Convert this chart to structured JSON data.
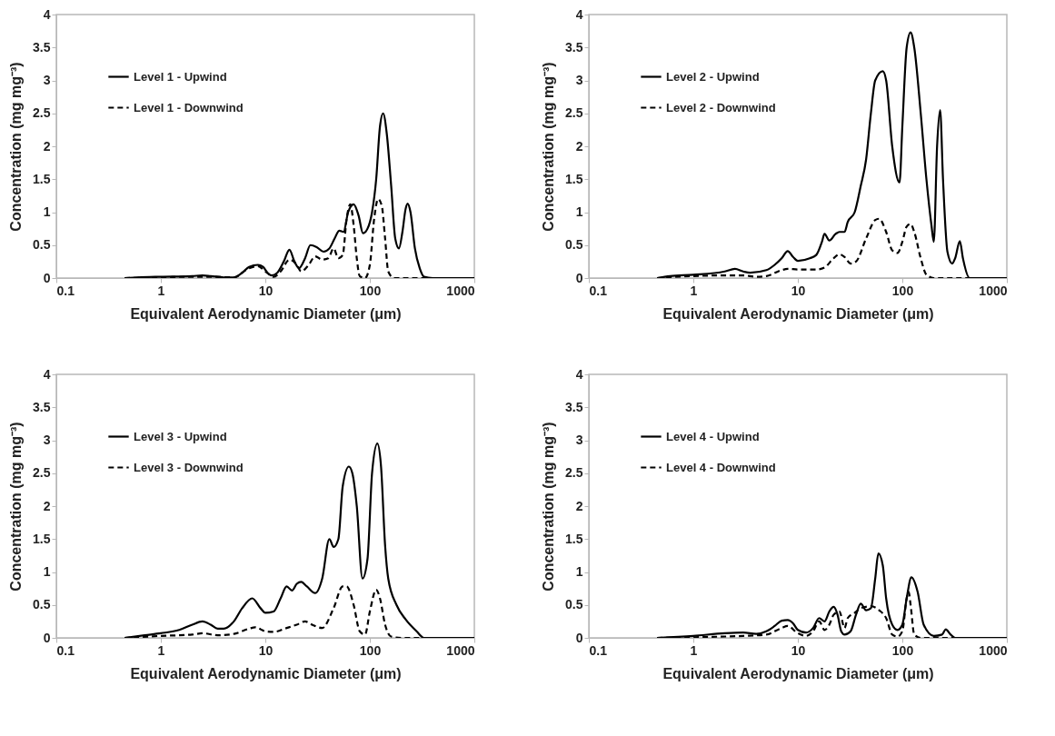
{
  "chart_data": [
    {
      "type": "line",
      "xlabel": "Equivalent Aerodynamic Diameter (μm)",
      "ylabel": "Concentration (mg mg⁻³)",
      "log": "x",
      "xlim": [
        0.1,
        1000
      ],
      "xticks": [
        0.1,
        1,
        10,
        100,
        1000
      ],
      "ylim": [
        0,
        4
      ],
      "yticks": [
        0,
        0.5,
        1,
        1.5,
        2,
        2.5,
        3,
        3.5,
        4
      ],
      "legend": "top left",
      "series": [
        {
          "name": "Level 1 - Upwind",
          "color": "#000000",
          "line_style": "solid",
          "x": [
            0.45,
            0.6,
            1,
            2,
            2.5,
            3,
            4,
            5,
            6,
            7,
            8.5,
            9.5,
            10.5,
            11.5,
            13,
            15,
            17,
            19,
            21,
            24,
            27,
            31,
            36,
            41,
            46,
            51,
            56,
            62,
            70,
            78,
            86,
            95,
            105,
            115,
            125,
            134,
            145,
            160,
            175,
            190,
            205,
            220,
            230,
            245,
            270,
            300,
            330,
            400,
            1000
          ],
          "values": [
            0,
            0.01,
            0.02,
            0.03,
            0.04,
            0.03,
            0.01,
            0.01,
            0.08,
            0.17,
            0.2,
            0.17,
            0.08,
            0.04,
            0.08,
            0.25,
            0.43,
            0.25,
            0.15,
            0.3,
            0.5,
            0.47,
            0.4,
            0.45,
            0.6,
            0.72,
            0.7,
            1.0,
            1.12,
            0.95,
            0.68,
            0.75,
            1.0,
            1.5,
            2.3,
            2.5,
            2.2,
            1.4,
            0.6,
            0.45,
            0.7,
            1.05,
            1.13,
            1.0,
            0.45,
            0.15,
            0.02,
            0,
            0
          ]
        },
        {
          "name": "Level 1 - Downwind",
          "color": "#000000",
          "line_style": "dashed",
          "x": [
            0.45,
            1,
            2,
            3,
            5,
            7,
            8.5,
            10,
            12,
            14,
            17,
            20,
            22,
            26,
            30,
            35,
            40,
            45,
            50,
            55,
            60,
            65,
            70,
            75,
            80,
            90,
            100,
            110,
            120,
            130,
            140,
            150,
            170,
            1000
          ],
          "values": [
            0,
            0.01,
            0.02,
            0.02,
            0.01,
            0.15,
            0.18,
            0.1,
            0.02,
            0.1,
            0.28,
            0.2,
            0.1,
            0.2,
            0.33,
            0.28,
            0.3,
            0.45,
            0.3,
            0.35,
            0.9,
            1.12,
            0.8,
            0.3,
            0.03,
            0,
            0.2,
            0.9,
            1.2,
            1.1,
            0.6,
            0.1,
            0,
            0
          ]
        }
      ]
    },
    {
      "type": "line",
      "xlabel": "Equivalent Aerodynamic Diameter (μm)",
      "ylabel": "Concentration (mg mg⁻³)",
      "log": "x",
      "xlim": [
        0.1,
        1000
      ],
      "xticks": [
        0.1,
        1,
        10,
        100,
        1000
      ],
      "ylim": [
        0,
        4
      ],
      "yticks": [
        0,
        0.5,
        1,
        1.5,
        2,
        2.5,
        3,
        3.5,
        4
      ],
      "legend": "top left",
      "series": [
        {
          "name": "Level 2 - Upwind",
          "color": "#000000",
          "line_style": "solid",
          "x": [
            0.45,
            0.6,
            1,
            2,
            2.5,
            3,
            3.5,
            5,
            6,
            7,
            8,
            9,
            10,
            13,
            15,
            17,
            18,
            20,
            23,
            25,
            28,
            30,
            35,
            40,
            45,
            50,
            55,
            65,
            70,
            80,
            94,
            100,
            110,
            120,
            130,
            150,
            170,
            190,
            200,
            215,
            230,
            245,
            270,
            300,
            320,
            355,
            380,
            440,
            1000
          ],
          "values": [
            0,
            0.03,
            0.05,
            0.1,
            0.14,
            0.1,
            0.08,
            0.12,
            0.2,
            0.3,
            0.41,
            0.32,
            0.26,
            0.3,
            0.35,
            0.55,
            0.67,
            0.57,
            0.67,
            0.7,
            0.7,
            0.85,
            1.0,
            1.4,
            1.8,
            2.5,
            3.0,
            3.14,
            3.0,
            2.0,
            1.45,
            2.3,
            3.5,
            3.73,
            3.5,
            2.5,
            1.5,
            0.8,
            0.55,
            2.0,
            2.55,
            1.5,
            0.4,
            0.22,
            0.3,
            0.56,
            0.3,
            0,
            0
          ]
        },
        {
          "name": "Level 2 - Downwind",
          "color": "#000000",
          "line_style": "dashed",
          "x": [
            0.45,
            1,
            2,
            3,
            4,
            5,
            7,
            8,
            10,
            15,
            18,
            22,
            25,
            28,
            32,
            36,
            45,
            55,
            60,
            70,
            80,
            90,
            100,
            110,
            120,
            130,
            150,
            170,
            200,
            1000
          ],
          "values": [
            0,
            0.03,
            0.04,
            0.04,
            0.02,
            0.03,
            0.12,
            0.14,
            0.13,
            0.13,
            0.16,
            0.3,
            0.36,
            0.32,
            0.22,
            0.25,
            0.6,
            0.88,
            0.9,
            0.7,
            0.42,
            0.38,
            0.55,
            0.78,
            0.82,
            0.7,
            0.3,
            0.05,
            0,
            0
          ]
        }
      ]
    },
    {
      "type": "line",
      "xlabel": "Equivalent Aerodynamic Diameter (μm)",
      "ylabel": "Concentration (mg mg⁻³)",
      "log": "x",
      "xlim": [
        0.1,
        1000
      ],
      "xticks": [
        0.1,
        1,
        10,
        100,
        1000
      ],
      "ylim": [
        0,
        4
      ],
      "yticks": [
        0,
        0.5,
        1,
        1.5,
        2,
        2.5,
        3,
        3.5,
        4
      ],
      "legend": "top left",
      "series": [
        {
          "name": "Level 3 - Upwind",
          "color": "#000000",
          "line_style": "solid",
          "x": [
            0.45,
            0.7,
            1,
            1.5,
            2,
            2.5,
            3,
            3.5,
            4,
            5,
            6,
            7.5,
            9,
            10,
            12,
            14,
            16,
            18,
            20,
            22,
            25,
            30,
            35,
            41,
            45,
            50,
            55,
            63,
            68,
            75,
            85,
            95,
            105,
            118,
            128,
            140,
            150,
            180,
            220,
            280,
            330,
            1000
          ],
          "values": [
            0,
            0.04,
            0.07,
            0.12,
            0.2,
            0.25,
            0.2,
            0.14,
            0.14,
            0.25,
            0.45,
            0.6,
            0.45,
            0.38,
            0.4,
            0.6,
            0.78,
            0.72,
            0.82,
            0.85,
            0.78,
            0.68,
            0.9,
            1.5,
            1.38,
            1.5,
            2.3,
            2.6,
            2.5,
            2.0,
            0.9,
            1.2,
            2.5,
            2.95,
            2.6,
            1.4,
            0.9,
            0.5,
            0.28,
            0.1,
            0,
            0
          ]
        },
        {
          "name": "Level 3 - Downwind",
          "color": "#000000",
          "line_style": "dashed",
          "x": [
            0.45,
            1,
            2,
            2.5,
            3.5,
            5,
            7,
            8,
            10,
            12,
            16,
            20,
            24,
            28,
            35,
            45,
            55,
            60,
            70,
            80,
            90,
            100,
            115,
            125,
            140,
            160,
            200,
            1000
          ],
          "values": [
            0,
            0.03,
            0.05,
            0.07,
            0.04,
            0.06,
            0.14,
            0.16,
            0.1,
            0.09,
            0.15,
            0.2,
            0.25,
            0.2,
            0.15,
            0.45,
            0.78,
            0.78,
            0.5,
            0.1,
            0.05,
            0.4,
            0.73,
            0.6,
            0.2,
            0.02,
            0,
            0
          ]
        }
      ]
    },
    {
      "type": "line",
      "xlabel": "Equivalent Aerodynamic Diameter (μm)",
      "ylabel": "Concentration (mg mg⁻³)",
      "log": "x",
      "xlim": [
        0.1,
        1000
      ],
      "xticks": [
        0.1,
        1,
        10,
        100,
        1000
      ],
      "ylim": [
        0,
        4
      ],
      "yticks": [
        0,
        0.5,
        1,
        1.5,
        2,
        2.5,
        3,
        3.5,
        4
      ],
      "legend": "top left",
      "series": [
        {
          "name": "Level 4 - Upwind",
          "color": "#000000",
          "line_style": "solid",
          "x": [
            0.45,
            1,
            2,
            3,
            4,
            5,
            6,
            7,
            8,
            9,
            10,
            12,
            14,
            16,
            18,
            20,
            22,
            24,
            26,
            28,
            32,
            36,
            40,
            45,
            50,
            55,
            59,
            65,
            70,
            80,
            90,
            100,
            110,
            122,
            140,
            160,
            200,
            240,
            260,
            290,
            320,
            1000
          ],
          "values": [
            0,
            0.03,
            0.07,
            0.08,
            0.06,
            0.1,
            0.18,
            0.26,
            0.27,
            0.22,
            0.12,
            0.08,
            0.15,
            0.3,
            0.25,
            0.4,
            0.47,
            0.35,
            0.1,
            0.05,
            0.1,
            0.35,
            0.52,
            0.42,
            0.45,
            0.9,
            1.28,
            1.1,
            0.6,
            0.2,
            0.12,
            0.2,
            0.6,
            0.92,
            0.7,
            0.2,
            0.03,
            0.05,
            0.13,
            0.05,
            0,
            0
          ]
        },
        {
          "name": "Level 4 - Downwind",
          "color": "#000000",
          "line_style": "dashed",
          "x": [
            0.45,
            1,
            3,
            5,
            7,
            8,
            10,
            12,
            14,
            16,
            18,
            20,
            22,
            25,
            28,
            30,
            35,
            40,
            50,
            60,
            70,
            80,
            90,
            100,
            110,
            115,
            120,
            130,
            150,
            1000
          ],
          "values": [
            0,
            0.01,
            0.03,
            0.05,
            0.15,
            0.18,
            0.07,
            0.03,
            0.1,
            0.25,
            0.12,
            0.2,
            0.35,
            0.4,
            0.15,
            0.3,
            0.38,
            0.45,
            0.48,
            0.42,
            0.3,
            0.05,
            0.02,
            0.1,
            0.6,
            0.7,
            0.5,
            0.05,
            0,
            0
          ]
        }
      ]
    }
  ]
}
